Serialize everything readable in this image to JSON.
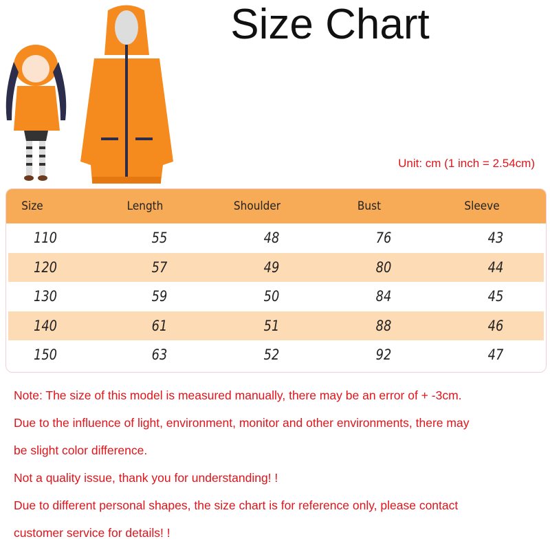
{
  "title": "Size Chart",
  "unit_note": "Unit: cm (1 inch = 2.54cm)",
  "table": {
    "headers": [
      "Size",
      "Length",
      "Shoulder",
      "Bust",
      "Sleeve"
    ],
    "rows": [
      [
        "110",
        "55",
        "48",
        "76",
        "43"
      ],
      [
        "120",
        "57",
        "49",
        "80",
        "44"
      ],
      [
        "130",
        "59",
        "50",
        "84",
        "45"
      ],
      [
        "140",
        "61",
        "51",
        "88",
        "46"
      ],
      [
        "150",
        "63",
        "52",
        "92",
        "47"
      ]
    ]
  },
  "notes": [
    "Note: The size of this model is measured manually, there may be an error of + -3cm.",
    "Due to the influence of light, environment, monitor and other environments, there may",
    "be slight color difference.",
    "Not a quality issue, thank you for understanding! !",
    "Due to different personal shapes, the size chart is for reference only, please contact",
    "customer service for details! !"
  ],
  "colors": {
    "header": "#f7ab57",
    "alt_row": "#fddcb5",
    "note_text": "#e0141b",
    "hoodie": "#f58a1f"
  }
}
